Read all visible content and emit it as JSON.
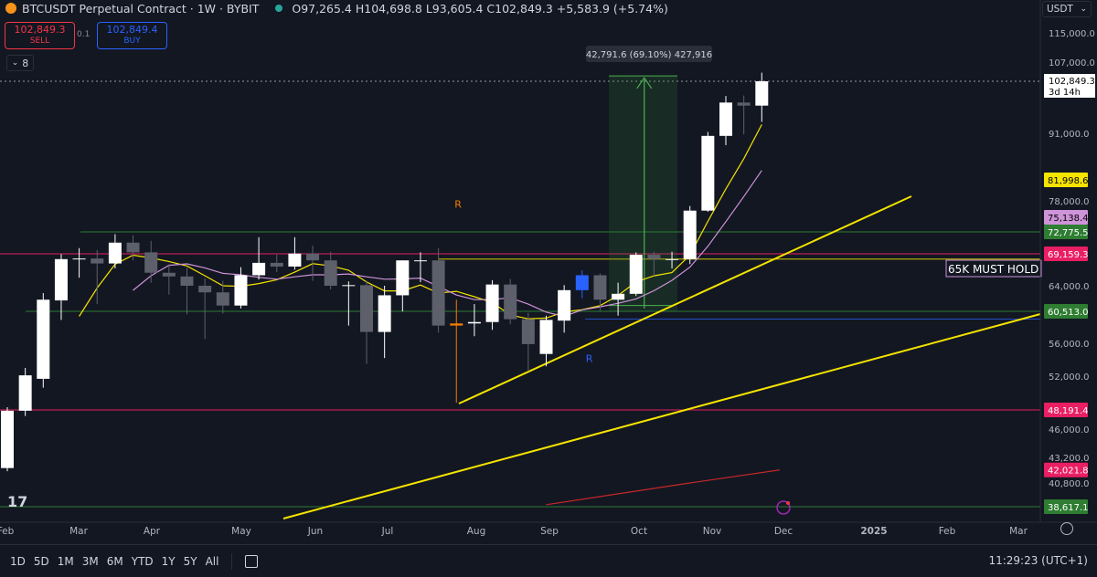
{
  "header": {
    "symbol_title": "BTCUSDT Perpetual Contract · 1W · BYBIT",
    "ohlc": "O97,265.4 H104,698.8 L93,605.4 C102,849.3 +5,583.9 (+5.74%)"
  },
  "trade_panel": {
    "sell_price": "102,849.3",
    "sell_label": "SELL",
    "spread": "0.1",
    "buy_price": "102,849.4",
    "buy_label": "BUY"
  },
  "indicator_toggle": "8",
  "currency_select": "USDT",
  "price_axis": {
    "ticks": [
      "115,000.0",
      "107,000.0",
      "91,000.0",
      "78,000.0",
      "64,000.0",
      "56,000.0",
      "52,000.0",
      "46,000.0",
      "43,200.0",
      "40,800.0"
    ],
    "current_price": "102,849.3",
    "countdown": "3d 14h"
  },
  "time_axis": [
    "Feb",
    "Mar",
    "Apr",
    "May",
    "Jun",
    "Jul",
    "Aug",
    "Sep",
    "Oct",
    "Nov",
    "Dec",
    "2025",
    "Feb",
    "Mar"
  ],
  "level_labels": [
    {
      "text": "81,998.6",
      "color": "#f5e400",
      "text_color": "#000000"
    },
    {
      "text": "75,138.4",
      "color": "#ce93d8",
      "text_color": "#000000"
    },
    {
      "text": "72,775.5",
      "color": "#2e7d32",
      "text_color": "#ffffff"
    },
    {
      "text": "69,159.3",
      "color": "#e91e63",
      "text_color": "#ffffff"
    },
    {
      "text": "60,513.0",
      "color": "#2e7d32",
      "text_color": "#ffffff"
    },
    {
      "text": "48,191.4",
      "color": "#e91e63",
      "text_color": "#ffffff"
    },
    {
      "text": "42,021.8",
      "color": "#e91e63",
      "text_color": "#ffffff"
    },
    {
      "text": "38,617.1",
      "color": "#2e7d32",
      "text_color": "#ffffff"
    }
  ],
  "annotations": {
    "measure_label": "42,791.6 (69.10%) 427,916",
    "hold_note": "65K MUST HOLD",
    "marker_r_orange": "R",
    "marker_r_blue": "R"
  },
  "bottom_bar": {
    "ranges": [
      "1D",
      "5D",
      "1M",
      "3M",
      "6M",
      "YTD",
      "1Y",
      "5Y",
      "All"
    ],
    "clock": "11:29:23 (UTC+1)"
  },
  "colors": {
    "background": "#131722",
    "candle_up": "#ffffff",
    "candle_down": "#5d606b",
    "trendline": "#f5e400",
    "ma_fast": "#f5e400",
    "ma_slow": "#ce93d8",
    "ma_long": "#c62828"
  },
  "chart_data": {
    "type": "candlestick",
    "symbol": "BTCUSDT",
    "interval": "1W",
    "price_axis_range": [
      38000,
      117000
    ],
    "candles": [
      {
        "o": 42200,
        "h": 48500,
        "l": 41900,
        "c": 48100
      },
      {
        "o": 48100,
        "h": 53000,
        "l": 47500,
        "c": 52100
      },
      {
        "o": 51700,
        "h": 63000,
        "l": 50700,
        "c": 62100
      },
      {
        "o": 62000,
        "h": 69100,
        "l": 59300,
        "c": 68300
      },
      {
        "o": 68300,
        "h": 70100,
        "l": 65300,
        "c": 68400
      },
      {
        "o": 68400,
        "h": 69800,
        "l": 61500,
        "c": 67600
      },
      {
        "o": 67600,
        "h": 72400,
        "l": 66800,
        "c": 71000
      },
      {
        "o": 71000,
        "h": 72200,
        "l": 68100,
        "c": 69400
      },
      {
        "o": 69400,
        "h": 71300,
        "l": 64500,
        "c": 66100
      },
      {
        "o": 66100,
        "h": 67500,
        "l": 62800,
        "c": 65500
      },
      {
        "o": 65500,
        "h": 66900,
        "l": 60100,
        "c": 64000
      },
      {
        "o": 64000,
        "h": 65200,
        "l": 56600,
        "c": 63100
      },
      {
        "o": 63100,
        "h": 64800,
        "l": 60200,
        "c": 61300
      },
      {
        "o": 61300,
        "h": 67000,
        "l": 60900,
        "c": 65700
      },
      {
        "o": 65700,
        "h": 71900,
        "l": 65000,
        "c": 67700
      },
      {
        "o": 67700,
        "h": 69000,
        "l": 66200,
        "c": 67100
      },
      {
        "o": 67100,
        "h": 71900,
        "l": 66600,
        "c": 69200
      },
      {
        "o": 69200,
        "h": 70500,
        "l": 64800,
        "c": 68100
      },
      {
        "o": 68100,
        "h": 69500,
        "l": 63500,
        "c": 64000
      },
      {
        "o": 64000,
        "h": 64700,
        "l": 58500,
        "c": 64100
      },
      {
        "o": 64100,
        "h": 64800,
        "l": 53500,
        "c": 57600
      },
      {
        "o": 57600,
        "h": 64000,
        "l": 54200,
        "c": 62700
      },
      {
        "o": 62700,
        "h": 68100,
        "l": 60500,
        "c": 68100
      },
      {
        "o": 68100,
        "h": 69400,
        "l": 64600,
        "c": 68100
      },
      {
        "o": 68100,
        "h": 70100,
        "l": 57500,
        "c": 58500
      },
      {
        "o": 58500,
        "h": 62100,
        "l": 49000,
        "c": 58800
      },
      {
        "o": 58800,
        "h": 61500,
        "l": 57000,
        "c": 59000
      },
      {
        "o": 59000,
        "h": 64900,
        "l": 57900,
        "c": 64200
      },
      {
        "o": 64200,
        "h": 65100,
        "l": 58700,
        "c": 59400
      },
      {
        "o": 59400,
        "h": 60300,
        "l": 52600,
        "c": 55900
      },
      {
        "o": 54700,
        "h": 59900,
        "l": 53200,
        "c": 59300
      },
      {
        "o": 59200,
        "h": 64100,
        "l": 57500,
        "c": 63400
      },
      {
        "o": 63400,
        "h": 66500,
        "l": 62300,
        "c": 65700
      },
      {
        "o": 65700,
        "h": 66000,
        "l": 60600,
        "c": 62100
      },
      {
        "o": 62100,
        "h": 64500,
        "l": 59900,
        "c": 62900
      },
      {
        "o": 62900,
        "h": 69400,
        "l": 62600,
        "c": 69000
      },
      {
        "o": 69000,
        "h": 69500,
        "l": 65600,
        "c": 68300
      },
      {
        "o": 68300,
        "h": 69500,
        "l": 66800,
        "c": 68300
      },
      {
        "o": 68300,
        "h": 77100,
        "l": 67500,
        "c": 76300
      },
      {
        "o": 76300,
        "h": 91300,
        "l": 76100,
        "c": 90500
      },
      {
        "o": 90500,
        "h": 99500,
        "l": 88700,
        "c": 98000
      },
      {
        "o": 98000,
        "h": 99600,
        "l": 90800,
        "c": 97300
      },
      {
        "o": 97300,
        "h": 104700,
        "l": 93600,
        "c": 102849
      }
    ]
  }
}
